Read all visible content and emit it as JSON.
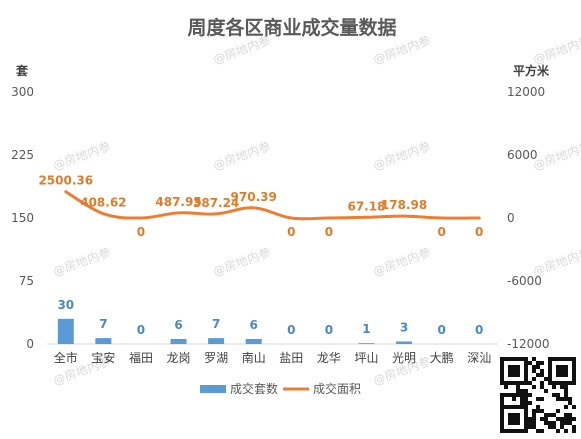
{
  "chart_data": {
    "type": "bar",
    "title": "周度各区商业成交量数据",
    "categories": [
      "全市",
      "宝安",
      "福田",
      "龙岗",
      "罗湖",
      "南山",
      "盐田",
      "龙华",
      "坪山",
      "光明",
      "大鹏",
      "深汕"
    ],
    "series": [
      {
        "name": "成交套数",
        "type": "bar",
        "axis": "left",
        "color": "#5b9bd5",
        "values": [
          30,
          7,
          0,
          6,
          7,
          6,
          0,
          0,
          1,
          3,
          0,
          0
        ],
        "labels": [
          "30",
          "7",
          "0",
          "6",
          "7",
          "6",
          "0",
          "0",
          "1",
          "3",
          "0",
          "0"
        ]
      },
      {
        "name": "成交面积",
        "type": "line",
        "axis": "right",
        "color": "#ed7d31",
        "values": [
          2500.36,
          408.62,
          0,
          487.95,
          387.24,
          970.39,
          0,
          0,
          67.18,
          178.98,
          0,
          0
        ],
        "labels": [
          "2500.36",
          "408.62",
          "0",
          "487.95",
          "387.24",
          "970.39",
          "0",
          "0",
          "67.18",
          "178.98",
          "0",
          "0"
        ]
      }
    ],
    "y_left": {
      "label": "套",
      "ticks": [
        "300",
        "225",
        "150",
        "75",
        "0"
      ],
      "range": [
        0,
        300
      ]
    },
    "y_right": {
      "label": "平方米",
      "ticks": [
        "12000",
        "6000",
        "0",
        "-6000",
        "-12000"
      ],
      "range": [
        -12000,
        12000
      ]
    },
    "grid": false,
    "legend_position": "bottom"
  },
  "watermark": "@房地内参",
  "qr_code": "qr-code"
}
